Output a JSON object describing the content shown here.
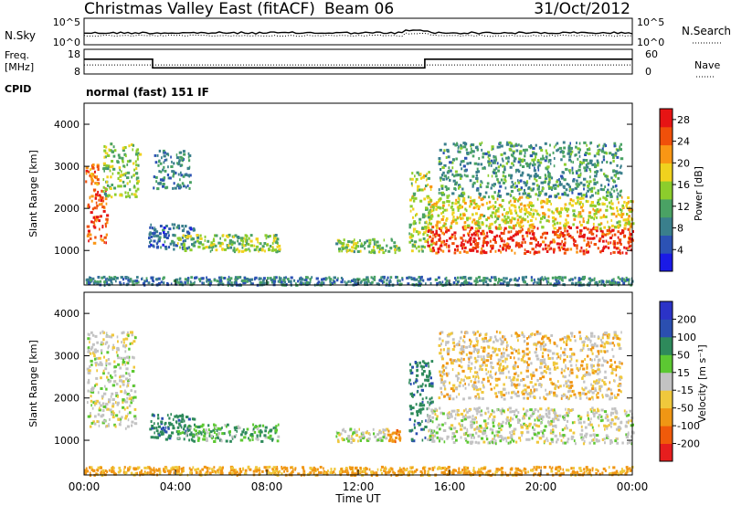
{
  "header": {
    "title": "Christmas Valley East (fitACF)",
    "beam_label": "Beam 06",
    "date": "31/Oct/2012"
  },
  "colors": {
    "axis": "#000000",
    "power_scale": [
      "#1a1ae6",
      "#2c52b4",
      "#3a7f8c",
      "#4aa264",
      "#8ccd2c",
      "#f0d21e",
      "#fa9614",
      "#f0500a",
      "#e61414"
    ],
    "velocity_scale": [
      "#2b33c7",
      "#2b4fb0",
      "#2e8a5b",
      "#5cc832",
      "#c3c3c3",
      "#f0c83c",
      "#f09614",
      "#f05a0a",
      "#e61e1e"
    ]
  },
  "chart_data": [
    {
      "type": "line",
      "name": "noise-panel",
      "left_label": "N.Sky",
      "right_label": "N.Search",
      "left_ticks": [
        "10^5",
        "10^0"
      ],
      "right_ticks": [
        "10^5",
        "10^0"
      ],
      "legend": "dotted"
    },
    {
      "type": "line",
      "name": "frequency-nave-panel",
      "left_label": [
        "Freq.",
        "[MHz]"
      ],
      "right_label": "Nave",
      "left_ticks": [
        18,
        8
      ],
      "right_ticks": [
        60,
        0
      ],
      "frequency_mhz": {
        "x": [
          "00:00",
          "03:00",
          "03:00",
          "14:55",
          "14:55",
          "24:00"
        ],
        "y": [
          14,
          14,
          10.5,
          10.5,
          14,
          14
        ]
      },
      "nave": {
        "x": [
          "00:00",
          "24:00"
        ],
        "y": [
          22,
          22
        ]
      }
    },
    {
      "type": "table",
      "name": "cpid",
      "label": "CPID",
      "value": "normal (fast) 151 IF"
    },
    {
      "type": "heatmap",
      "name": "power-panel",
      "ylabel": "Slant Range [km]",
      "yticks": [
        1000,
        2000,
        3000,
        4000
      ],
      "ylim": [
        180,
        4500
      ],
      "xlim": [
        "00:00",
        "24:00"
      ],
      "colorbar_label": "Power [dB]",
      "colorbar_ticks": [
        4,
        8,
        12,
        16,
        20,
        24,
        28
      ],
      "colorbar_range": [
        0,
        30
      ],
      "echo_regions": [
        {
          "t": [
            0.1,
            1.0
          ],
          "range": [
            1200,
            2500
          ],
          "level": 26
        },
        {
          "t": [
            0.0,
            0.6
          ],
          "range": [
            2600,
            3100
          ],
          "level": 24
        },
        {
          "t": [
            0.8,
            2.4
          ],
          "range": [
            2300,
            3600
          ],
          "level": 14
        },
        {
          "t": [
            3.0,
            4.6
          ],
          "range": [
            2500,
            3400
          ],
          "level": 8
        },
        {
          "t": [
            2.8,
            4.8
          ],
          "range": [
            1050,
            1650
          ],
          "level": 6
        },
        {
          "t": [
            4.0,
            8.5
          ],
          "range": [
            1000,
            1400
          ],
          "level": 14
        },
        {
          "t": [
            11.0,
            13.8
          ],
          "range": [
            980,
            1300
          ],
          "level": 14
        },
        {
          "t": [
            0.0,
            24.0
          ],
          "range": [
            200,
            400
          ],
          "level": 8
        },
        {
          "t": [
            14.2,
            15.2
          ],
          "range": [
            1000,
            2900
          ],
          "level": 16
        },
        {
          "t": [
            15.0,
            24.0
          ],
          "range": [
            950,
            1600
          ],
          "level": 28
        },
        {
          "t": [
            15.0,
            24.0
          ],
          "range": [
            1550,
            2300
          ],
          "level": 18
        },
        {
          "t": [
            15.5,
            23.5
          ],
          "range": [
            2300,
            3600
          ],
          "level": 10
        }
      ]
    },
    {
      "type": "heatmap",
      "name": "velocity-panel",
      "ylabel": "Slant Range [km]",
      "yticks": [
        1000,
        2000,
        3000,
        4000
      ],
      "ylim": [
        180,
        4500
      ],
      "xlim": [
        "00:00",
        "24:00"
      ],
      "xticks": [
        "00:00",
        "04:00",
        "08:00",
        "12:00",
        "16:00",
        "20:00",
        "00:00"
      ],
      "xlabel": "Time UT",
      "colorbar_label": "Velocity [m s⁻¹]",
      "colorbar_ticks": [
        200,
        100,
        50,
        15,
        -15,
        -50,
        -100,
        -200
      ],
      "echo_regions": [
        {
          "t": [
            0.1,
            2.2
          ],
          "range": [
            1300,
            3600
          ],
          "velocity": 0
        },
        {
          "t": [
            2.8,
            4.8
          ],
          "range": [
            1050,
            1650
          ],
          "velocity": 60
        },
        {
          "t": [
            4.0,
            8.5
          ],
          "range": [
            1000,
            1400
          ],
          "velocity": 30
        },
        {
          "t": [
            11.0,
            13.2
          ],
          "range": [
            980,
            1300
          ],
          "velocity": 0
        },
        {
          "t": [
            13.2,
            13.8
          ],
          "range": [
            980,
            1300
          ],
          "velocity": -60
        },
        {
          "t": [
            0.0,
            24.0
          ],
          "range": [
            200,
            400
          ],
          "velocity": -40
        },
        {
          "t": [
            14.2,
            15.2
          ],
          "range": [
            1000,
            2900
          ],
          "velocity": 60
        },
        {
          "t": [
            15.0,
            24.0
          ],
          "range": [
            950,
            1800
          ],
          "velocity": 0
        },
        {
          "t": [
            15.5,
            23.5
          ],
          "range": [
            2000,
            3600
          ],
          "velocity": -20
        }
      ]
    }
  ]
}
